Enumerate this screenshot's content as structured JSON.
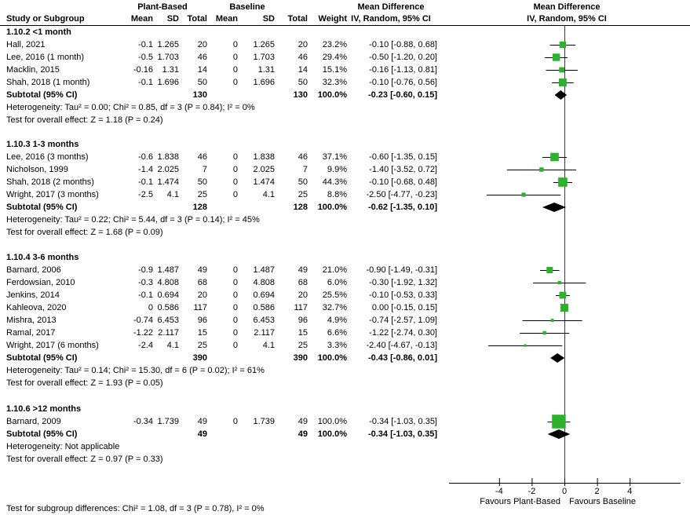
{
  "title_headers": {
    "plant": "Plant-Based",
    "baseline": "Baseline",
    "study_col": "Study or Subgroup",
    "mean": "Mean",
    "sd": "SD",
    "total": "Total",
    "weight": "Weight",
    "effect": "Mean Difference",
    "effect_method": "IV, Random, 95% CI"
  },
  "groups": [
    {
      "title": "1.10.2 <1 month",
      "studies": [
        {
          "study": "Hall, 2021",
          "mean1": "-0.1",
          "sd1": "1.265",
          "total1": "20",
          "mean2": "0",
          "sd2": "1.265",
          "total2": "20",
          "weight": "23.2%",
          "ci": "-0.10 [-0.88, 0.68]"
        },
        {
          "study": "Lee, 2016 (1 month)",
          "mean1": "-0.5",
          "sd1": "1.703",
          "total1": "46",
          "mean2": "0",
          "sd2": "1.703",
          "total2": "46",
          "weight": "29.4%",
          "ci": "-0.50 [-1.20, 0.20]"
        },
        {
          "study": "Macklin, 2015",
          "mean1": "-0.16",
          "sd1": "1.31",
          "total1": "14",
          "mean2": "0",
          "sd2": "1.31",
          "total2": "14",
          "weight": "15.1%",
          "ci": "-0.16 [-1.13, 0.81]"
        },
        {
          "study": "Shah, 2018 (1 month)",
          "mean1": "-0.1",
          "sd1": "1.696",
          "total1": "50",
          "mean2": "0",
          "sd2": "1.696",
          "total2": "50",
          "weight": "32.3%",
          "ci": "-0.10 [-0.76, 0.56]"
        }
      ],
      "subtotal": {
        "label": "Subtotal (95% CI)",
        "total1": "130",
        "total2": "130",
        "weight": "100.0%",
        "ci": "-0.23 [-0.60, 0.15]"
      },
      "heterogeneity": "Heterogeneity: Tau² = 0.00; Chi² = 0.85, df = 3 (P = 0.84); I² = 0%",
      "overall_effect": "Test for overall effect: Z = 1.18 (P = 0.24)"
    },
    {
      "title": "1.10.3 1-3 months",
      "studies": [
        {
          "study": "Lee, 2016 (3 months)",
          "mean1": "-0.6",
          "sd1": "1.838",
          "total1": "46",
          "mean2": "0",
          "sd2": "1.838",
          "total2": "46",
          "weight": "37.1%",
          "ci": "-0.60 [-1.35, 0.15]"
        },
        {
          "study": "Nicholson, 1999",
          "mean1": "-1.4",
          "sd1": "2.025",
          "total1": "7",
          "mean2": "0",
          "sd2": "2.025",
          "total2": "7",
          "weight": "9.9%",
          "ci": "-1.40 [-3.52, 0.72]"
        },
        {
          "study": "Shah, 2018 (2 months)",
          "mean1": "-0.1",
          "sd1": "1.474",
          "total1": "50",
          "mean2": "0",
          "sd2": "1.474",
          "total2": "50",
          "weight": "44.3%",
          "ci": "-0.10 [-0.68, 0.48]"
        },
        {
          "study": "Wright, 2017 (3 months)",
          "mean1": "-2.5",
          "sd1": "4.1",
          "total1": "25",
          "mean2": "0",
          "sd2": "4.1",
          "total2": "25",
          "weight": "8.8%",
          "ci": "-2.50 [-4.77, -0.23]"
        }
      ],
      "subtotal": {
        "label": "Subtotal (95% CI)",
        "total1": "128",
        "total2": "128",
        "weight": "100.0%",
        "ci": "-0.62 [-1.35, 0.10]"
      },
      "heterogeneity": "Heterogeneity: Tau² = 0.22; Chi² = 5.44, df = 3 (P = 0.14); I² = 45%",
      "overall_effect": "Test for overall effect: Z = 1.68 (P = 0.09)"
    },
    {
      "title": "1.10.4 3-6 months",
      "studies": [
        {
          "study": "Barnard, 2006",
          "mean1": "-0.9",
          "sd1": "1.487",
          "total1": "49",
          "mean2": "0",
          "sd2": "1.487",
          "total2": "49",
          "weight": "21.0%",
          "ci": "-0.90 [-1.49, -0.31]"
        },
        {
          "study": "Ferdowsian, 2010",
          "mean1": "-0.3",
          "sd1": "4.808",
          "total1": "68",
          "mean2": "0",
          "sd2": "4.808",
          "total2": "68",
          "weight": "6.0%",
          "ci": "-0.30 [-1.92, 1.32]"
        },
        {
          "study": "Jenkins, 2014",
          "mean1": "-0.1",
          "sd1": "0.694",
          "total1": "20",
          "mean2": "0",
          "sd2": "0.694",
          "total2": "20",
          "weight": "25.5%",
          "ci": "-0.10 [-0.53, 0.33]"
        },
        {
          "study": "Kahleova, 2020",
          "mean1": "0",
          "sd1": "0.586",
          "total1": "117",
          "mean2": "0",
          "sd2": "0.586",
          "total2": "117",
          "weight": "32.7%",
          "ci": "0.00 [-0.15, 0.15]"
        },
        {
          "study": "Mishra, 2013",
          "mean1": "-0.74",
          "sd1": "6.453",
          "total1": "96",
          "mean2": "0",
          "sd2": "6.453",
          "total2": "96",
          "weight": "4.9%",
          "ci": "-0.74 [-2.57, 1.09]"
        },
        {
          "study": "Ramal, 2017",
          "mean1": "-1.22",
          "sd1": "2.117",
          "total1": "15",
          "mean2": "0",
          "sd2": "2.117",
          "total2": "15",
          "weight": "6.6%",
          "ci": "-1.22 [-2.74, 0.30]"
        },
        {
          "study": "Wright, 2017 (6 months)",
          "mean1": "-2.4",
          "sd1": "4.1",
          "total1": "25",
          "mean2": "0",
          "sd2": "4.1",
          "total2": "25",
          "weight": "3.3%",
          "ci": "-2.40 [-4.67, -0.13]"
        }
      ],
      "subtotal": {
        "label": "Subtotal (95% CI)",
        "total1": "390",
        "total2": "390",
        "weight": "100.0%",
        "ci": "-0.43 [-0.86, 0.01]"
      },
      "heterogeneity": "Heterogeneity: Tau² = 0.14; Chi² = 15.30, df = 6 (P = 0.02); I² = 61%",
      "overall_effect": "Test for overall effect: Z = 1.93 (P = 0.05)"
    },
    {
      "title": "1.10.6 >12 months",
      "studies": [
        {
          "study": "Barnard, 2009",
          "mean1": "-0.34",
          "sd1": "1.739",
          "total1": "49",
          "mean2": "0",
          "sd2": "1.739",
          "total2": "49",
          "weight": "100.0%",
          "ci": "-0.34 [-1.03, 0.35]"
        }
      ],
      "subtotal": {
        "label": "Subtotal (95% CI)",
        "total1": "49",
        "total2": "49",
        "weight": "100.0%",
        "ci": "-0.34 [-1.03, 0.35]"
      },
      "heterogeneity": "Heterogeneity: Not applicable",
      "overall_effect": "Test for overall effect: Z = 0.97 (P = 0.33)"
    }
  ],
  "axis": {
    "tick_labels": [
      "-4",
      "-2",
      "0",
      "2",
      "4"
    ],
    "favours_left": "Favours Plant-Based",
    "favours_right": "Favours Baseline"
  },
  "footer": {
    "subgroup_test": "Test for subgroup differences: Chi² = 1.08, df = 3 (P = 0.78), I² = 0%"
  },
  "colors": {
    "marker_green": "#2CB22C",
    "diamond_black": "#000000",
    "line_black": "#000000",
    "zero_line_gray": "#3a3a3a"
  },
  "chart_data": {
    "type": "scatter",
    "subtype": "forest-plot",
    "title": "Mean Difference",
    "effect_measure": "IV, Random, 95% CI",
    "xlim": [
      -7,
      7
    ],
    "x_ticks": [
      -4,
      -2,
      0,
      2,
      4
    ],
    "xlabel_left": "Favours Plant-Based",
    "xlabel_right": "Favours Baseline",
    "groups": [
      {
        "name": "1.10.2 <1 month",
        "points": [
          {
            "label": "Hall, 2021",
            "est": -0.1,
            "lo": -0.88,
            "hi": 0.68,
            "weight": 23.2
          },
          {
            "label": "Lee, 2016 (1 month)",
            "est": -0.5,
            "lo": -1.2,
            "hi": 0.2,
            "weight": 29.4
          },
          {
            "label": "Macklin, 2015",
            "est": -0.16,
            "lo": -1.13,
            "hi": 0.81,
            "weight": 15.1
          },
          {
            "label": "Shah, 2018 (1 month)",
            "est": -0.1,
            "lo": -0.76,
            "hi": 0.56,
            "weight": 32.3
          }
        ],
        "subtotal": {
          "est": -0.23,
          "lo": -0.6,
          "hi": 0.15
        }
      },
      {
        "name": "1.10.3 1-3 months",
        "points": [
          {
            "label": "Lee, 2016 (3 months)",
            "est": -0.6,
            "lo": -1.35,
            "hi": 0.15,
            "weight": 37.1
          },
          {
            "label": "Nicholson, 1999",
            "est": -1.4,
            "lo": -3.52,
            "hi": 0.72,
            "weight": 9.9
          },
          {
            "label": "Shah, 2018 (2 months)",
            "est": -0.1,
            "lo": -0.68,
            "hi": 0.48,
            "weight": 44.3
          },
          {
            "label": "Wright, 2017 (3 months)",
            "est": -2.5,
            "lo": -4.77,
            "hi": -0.23,
            "weight": 8.8
          }
        ],
        "subtotal": {
          "est": -0.62,
          "lo": -1.35,
          "hi": 0.1
        }
      },
      {
        "name": "1.10.4 3-6 months",
        "points": [
          {
            "label": "Barnard, 2006",
            "est": -0.9,
            "lo": -1.49,
            "hi": -0.31,
            "weight": 21.0
          },
          {
            "label": "Ferdowsian, 2010",
            "est": -0.3,
            "lo": -1.92,
            "hi": 1.32,
            "weight": 6.0
          },
          {
            "label": "Jenkins, 2014",
            "est": -0.1,
            "lo": -0.53,
            "hi": 0.33,
            "weight": 25.5
          },
          {
            "label": "Kahleova, 2020",
            "est": 0.0,
            "lo": -0.15,
            "hi": 0.15,
            "weight": 32.7
          },
          {
            "label": "Mishra, 2013",
            "est": -0.74,
            "lo": -2.57,
            "hi": 1.09,
            "weight": 4.9
          },
          {
            "label": "Ramal, 2017",
            "est": -1.22,
            "lo": -2.74,
            "hi": 0.3,
            "weight": 6.6
          },
          {
            "label": "Wright, 2017 (6 months)",
            "est": -2.4,
            "lo": -4.67,
            "hi": -0.13,
            "weight": 3.3
          }
        ],
        "subtotal": {
          "est": -0.43,
          "lo": -0.86,
          "hi": 0.01
        }
      },
      {
        "name": "1.10.6 >12 months",
        "points": [
          {
            "label": "Barnard, 2009",
            "est": -0.34,
            "lo": -1.03,
            "hi": 0.35,
            "weight": 100.0
          }
        ],
        "subtotal": {
          "est": -0.34,
          "lo": -1.03,
          "hi": 0.35
        }
      }
    ]
  }
}
